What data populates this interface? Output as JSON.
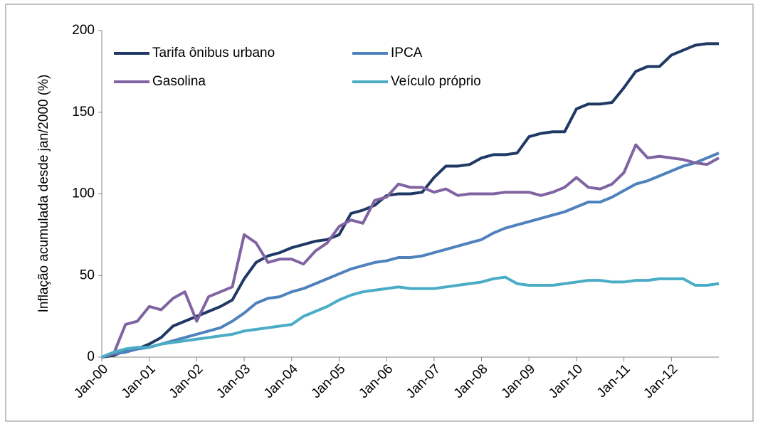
{
  "chart_data": {
    "type": "line",
    "y_label": "Inflação acumulada desde jan/2000 (%)",
    "x": [
      0,
      3,
      6,
      9,
      12,
      15,
      18,
      21,
      24,
      27,
      30,
      33,
      36,
      39,
      42,
      45,
      48,
      51,
      54,
      57,
      60,
      63,
      66,
      69,
      72,
      75,
      78,
      81,
      84,
      87,
      90,
      93,
      96,
      99,
      102,
      105,
      108,
      111,
      114,
      117,
      120,
      123,
      126,
      129,
      132,
      135,
      138,
      141,
      144,
      147,
      150,
      153,
      156
    ],
    "series": [
      {
        "name": "Tarifa ônibus urbano",
        "color": "#1f3864",
        "values": [
          0,
          1,
          4,
          5,
          8,
          12,
          19,
          22,
          25,
          28,
          31,
          35,
          48,
          58,
          62,
          64,
          67,
          69,
          71,
          72,
          75,
          88,
          90,
          93,
          99,
          100,
          100,
          101,
          110,
          117,
          117,
          118,
          122,
          124,
          124,
          125,
          135,
          137,
          138,
          138,
          152,
          155,
          155,
          156,
          165,
          175,
          178,
          178,
          185,
          188,
          191,
          192,
          192
        ]
      },
      {
        "name": "IPCA",
        "color": "#4f81bd",
        "values": [
          0,
          2,
          3,
          5,
          6,
          8,
          10,
          12,
          14,
          16,
          18,
          22,
          27,
          33,
          36,
          37,
          40,
          42,
          45,
          48,
          51,
          54,
          56,
          58,
          59,
          61,
          61,
          62,
          64,
          66,
          68,
          70,
          72,
          76,
          79,
          81,
          83,
          85,
          87,
          89,
          92,
          95,
          95,
          98,
          102,
          106,
          108,
          111,
          114,
          117,
          119,
          122,
          125
        ]
      },
      {
        "name": "Gasolina",
        "color": "#8064a2",
        "values": [
          0,
          2,
          20,
          22,
          31,
          29,
          36,
          40,
          22,
          37,
          40,
          43,
          75,
          70,
          58,
          60,
          60,
          57,
          65,
          70,
          80,
          84,
          82,
          96,
          98,
          106,
          104,
          104,
          101,
          103,
          99,
          100,
          100,
          100,
          101,
          101,
          101,
          99,
          101,
          104,
          110,
          104,
          103,
          106,
          113,
          130,
          122,
          123,
          122,
          121,
          119,
          118,
          122
        ]
      },
      {
        "name": "Veículo próprio",
        "color": "#4bacc6",
        "values": [
          0,
          3,
          5,
          6,
          6,
          8,
          9,
          10,
          11,
          12,
          13,
          14,
          16,
          17,
          18,
          19,
          20,
          25,
          28,
          31,
          35,
          38,
          40,
          41,
          42,
          43,
          42,
          42,
          42,
          43,
          44,
          45,
          46,
          48,
          49,
          45,
          44,
          44,
          44,
          45,
          46,
          47,
          47,
          46,
          46,
          47,
          47,
          48,
          48,
          48,
          44,
          44,
          45
        ]
      }
    ],
    "xlim": [
      0,
      156
    ],
    "xticks": [
      {
        "value": 0,
        "label": "Jan-00"
      },
      {
        "value": 12,
        "label": "Jan-01"
      },
      {
        "value": 24,
        "label": "Jan-02"
      },
      {
        "value": 36,
        "label": "Jan-03"
      },
      {
        "value": 48,
        "label": "Jan-04"
      },
      {
        "value": 60,
        "label": "Jan-05"
      },
      {
        "value": 72,
        "label": "Jan-06"
      },
      {
        "value": 84,
        "label": "Jan-07"
      },
      {
        "value": 96,
        "label": "Jan-08"
      },
      {
        "value": 108,
        "label": "Jan-09"
      },
      {
        "value": 120,
        "label": "Jan-10"
      },
      {
        "value": 132,
        "label": "Jan-11"
      },
      {
        "value": 144,
        "label": "Jan-12"
      }
    ],
    "ylim": [
      0,
      200
    ],
    "yticks": [
      0,
      50,
      100,
      150,
      200
    ],
    "grid": false,
    "legend": "top-left"
  }
}
